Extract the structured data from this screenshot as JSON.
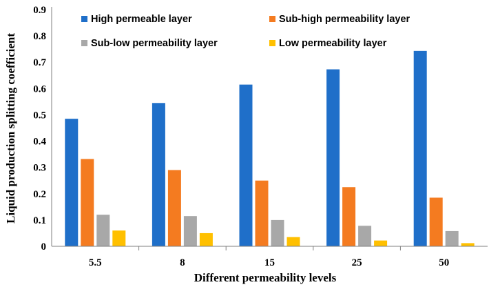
{
  "chart_data": {
    "type": "bar",
    "title": "",
    "xlabel": "Different permeability levels",
    "ylabel": "Liquid production splitting coefficient",
    "categories": [
      "5.5",
      "8",
      "15",
      "25",
      "50"
    ],
    "ylim": [
      0,
      0.9
    ],
    "yticks": [
      "0",
      "0.1",
      "0.2",
      "0.3",
      "0.4",
      "0.5",
      "0.6",
      "0.7",
      "0.8",
      "0.9"
    ],
    "grid": false,
    "legend_position": "top",
    "series": [
      {
        "name": "High permeable layer",
        "color": "#1f6fc9",
        "values": [
          0.485,
          0.545,
          0.615,
          0.673,
          0.743
        ]
      },
      {
        "name": "Sub-high permeability layer",
        "color": "#f47b20",
        "values": [
          0.332,
          0.29,
          0.25,
          0.225,
          0.185
        ]
      },
      {
        "name": "Sub-low permeability layer",
        "color": "#a8a8a8",
        "values": [
          0.12,
          0.115,
          0.1,
          0.078,
          0.058
        ]
      },
      {
        "name": "Low permeability layer",
        "color": "#ffc000",
        "values": [
          0.06,
          0.05,
          0.035,
          0.022,
          0.012
        ]
      }
    ]
  }
}
